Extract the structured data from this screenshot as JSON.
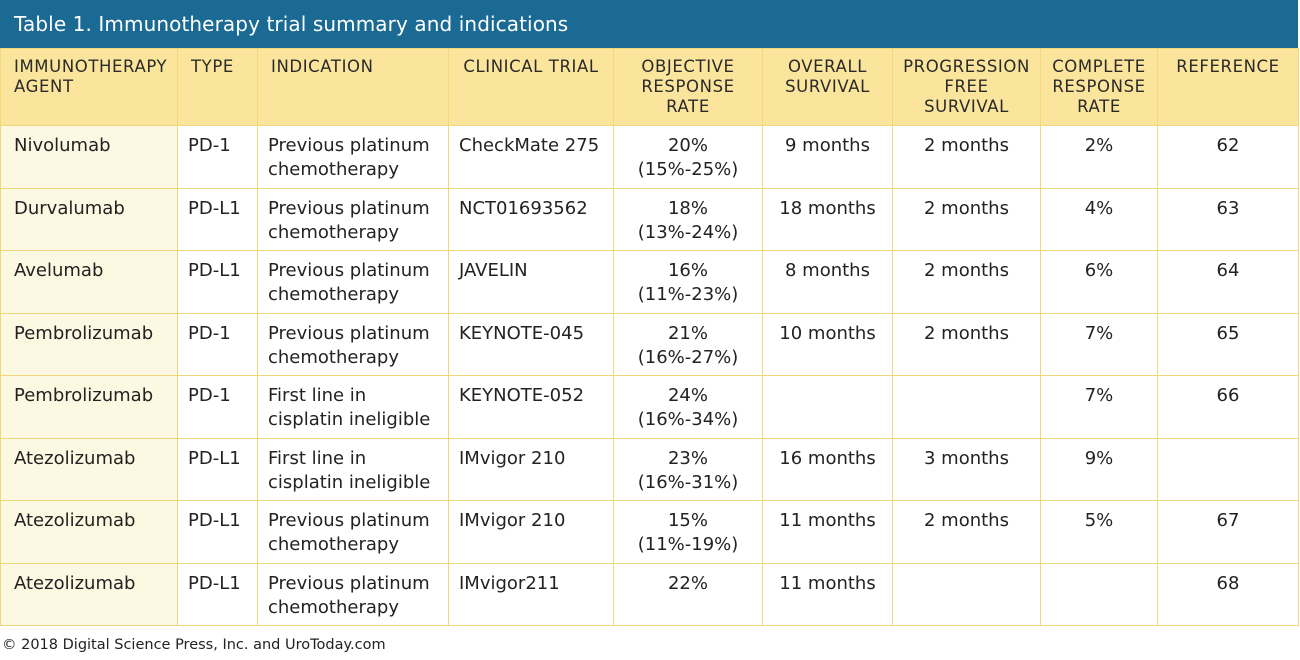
{
  "title": "Table 1. Immunotherapy trial summary and indications",
  "columns": [
    "IMMUNOTHERAPY AGENT",
    "TYPE",
    "INDICATION",
    "CLINICAL TRIAL",
    "OBJECTIVE RESPONSE RATE",
    "OVERALL SURVIVAL",
    "PROGRESSION FREE SURVIVAL",
    "COMPLETE RESPONSE RATE",
    "REFERENCE"
  ],
  "rows": [
    [
      "Nivolumab",
      "PD-1",
      "Previous platinum chemotherapy",
      "CheckMate 275",
      "20% (15%-25%)",
      "9 months",
      "2 months",
      "2%",
      "62"
    ],
    [
      "Durvalumab",
      "PD-L1",
      "Previous platinum chemotherapy",
      "NCT01693562",
      "18% (13%-24%)",
      "18 months",
      "2 months",
      "4%",
      "63"
    ],
    [
      "Avelumab",
      "PD-L1",
      "Previous platinum chemotherapy",
      "JAVELIN",
      "16% (11%-23%)",
      "8 months",
      "2 months",
      "6%",
      "64"
    ],
    [
      "Pembrolizumab",
      "PD-1",
      "Previous platinum chemotherapy",
      "KEYNOTE-045",
      "21% (16%-27%)",
      "10 months",
      "2 months",
      "7%",
      "65"
    ],
    [
      "Pembrolizumab",
      "PD-1",
      "First line in cisplatin ineligible",
      "KEYNOTE-052",
      "24% (16%-34%)",
      "",
      "",
      "7%",
      "66"
    ],
    [
      "Atezolizumab",
      "PD-L1",
      "First line in cisplatin ineligible",
      "IMvigor 210",
      "23% (16%-31%)",
      "16 months",
      "3 months",
      "9%",
      ""
    ],
    [
      "Atezolizumab",
      "PD-L1",
      "Previous platinum chemotherapy",
      "IMvigor 210",
      "15% (11%-19%)",
      "11 months",
      "2 months",
      "5%",
      "67"
    ],
    [
      "Atezolizumab",
      "PD-L1",
      "Previous platinum chemotherapy",
      "IMvigor211",
      "22%",
      "11 months",
      "",
      "",
      "68"
    ]
  ],
  "footer": "© 2018 Digital Science Press, Inc. and UroToday.com",
  "colors": {
    "title_bar": "#1b6a94",
    "header_bg": "#fbe59c",
    "agent_col_bg": "#fdf8e2",
    "border": "#f2d67c"
  }
}
